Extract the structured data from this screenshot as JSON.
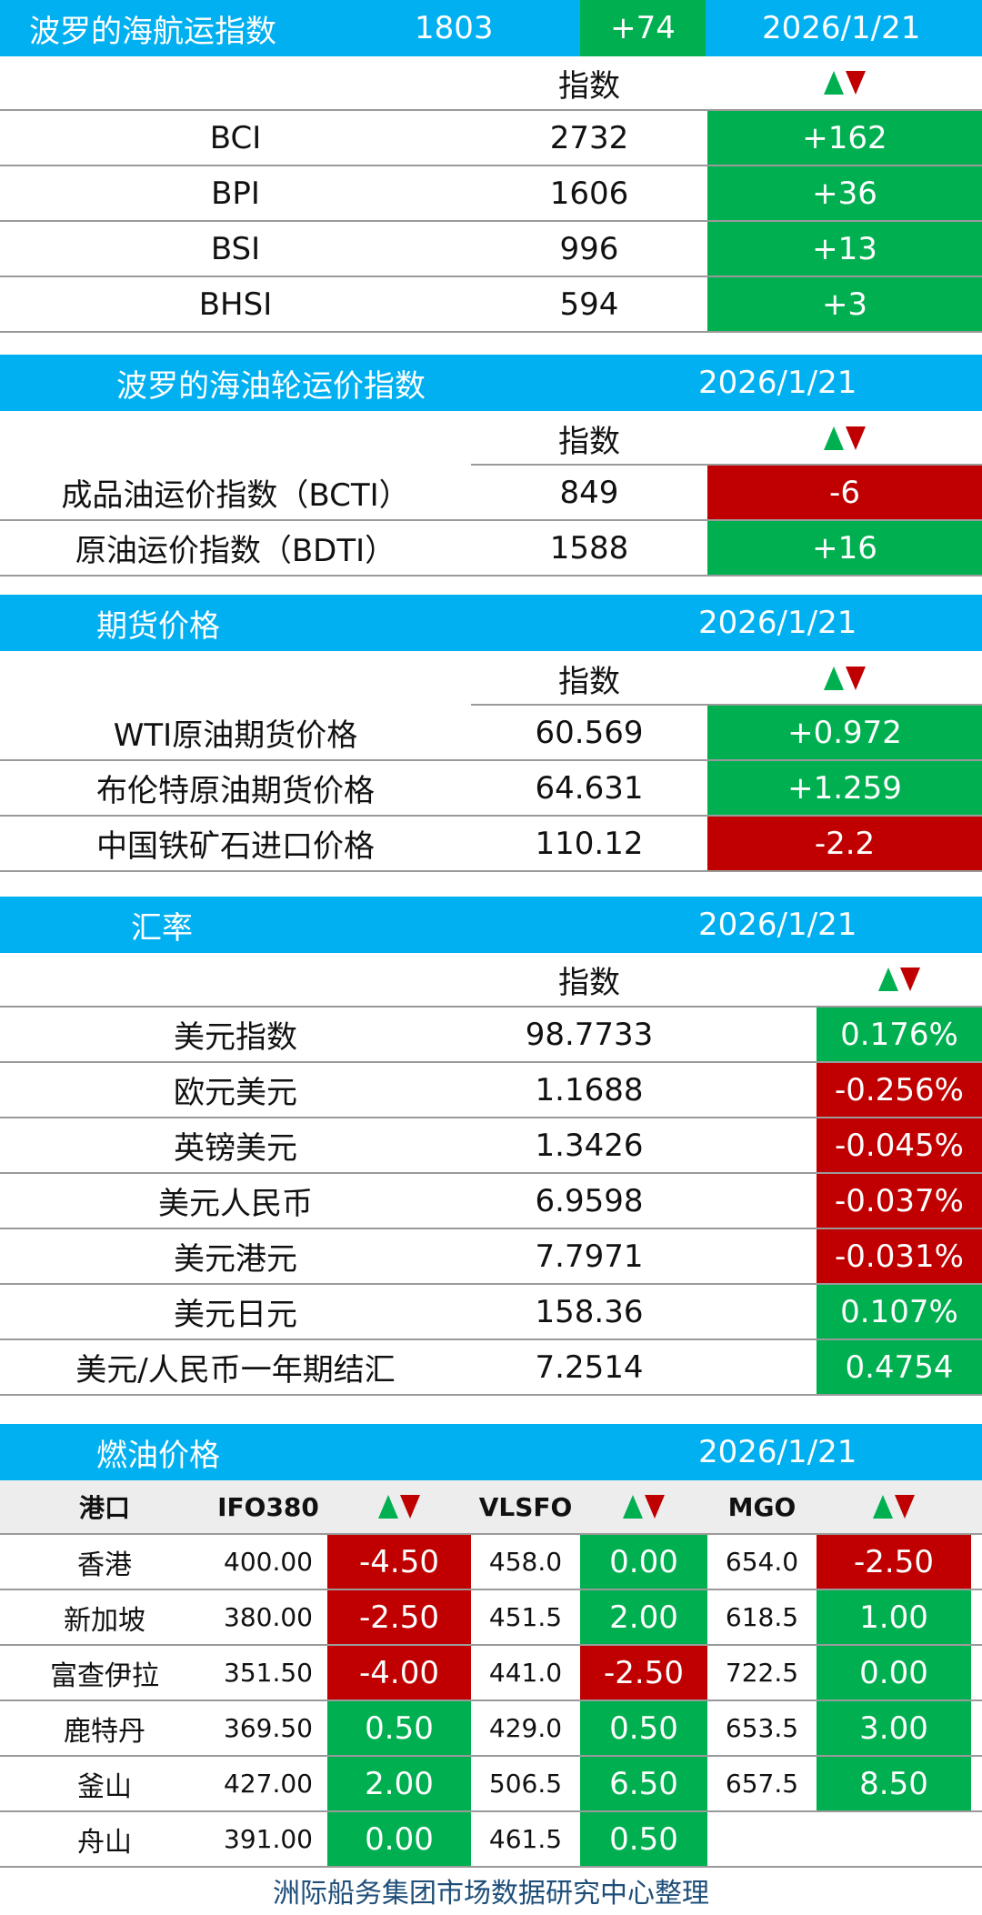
{
  "bdi": {
    "title": "波罗的海航运指数",
    "value": "1803",
    "change": "+74",
    "date": "2026/1/21",
    "col_index": "指数",
    "rows": [
      {
        "name": "BCI",
        "value": "2732",
        "change": "+162"
      },
      {
        "name": "BPI",
        "value": "1606",
        "change": "+36"
      },
      {
        "name": "BSI",
        "value": "996",
        "change": "+13"
      },
      {
        "name": "BHSI",
        "value": "594",
        "change": "+3"
      }
    ]
  },
  "tanker": {
    "title": "波罗的海油轮运价指数",
    "date": "2026/1/21",
    "col_index": "指数",
    "rows": [
      {
        "name": "成品油运价指数（BCTI）",
        "value": "849",
        "change": "-6"
      },
      {
        "name": "原油运价指数（BDTI）",
        "value": "1588",
        "change": "+16"
      }
    ]
  },
  "futures": {
    "title": "期货价格",
    "date": "2026/1/21",
    "col_index": "指数",
    "rows": [
      {
        "name": "WTI原油期货价格",
        "value": "60.569",
        "change": "+0.972"
      },
      {
        "name": "布伦特原油期货价格",
        "value": "64.631",
        "change": "+1.259"
      },
      {
        "name": "中国铁矿石进口价格",
        "value": "110.12",
        "change": "-2.2"
      }
    ]
  },
  "fx": {
    "title": "汇率",
    "date": "2026/1/21",
    "col_index": "指数",
    "rows": [
      {
        "name": "美元指数",
        "value": "98.7733",
        "change": "0.176%"
      },
      {
        "name": "欧元美元",
        "value": "1.1688",
        "change": "-0.256%"
      },
      {
        "name": "英镑美元",
        "value": "1.3426",
        "change": "-0.045%"
      },
      {
        "name": "美元人民币",
        "value": "6.9598",
        "change": "-0.037%"
      },
      {
        "name": "美元港元",
        "value": "7.7971",
        "change": "-0.031%"
      },
      {
        "name": "美元日元",
        "value": "158.36",
        "change": "0.107%"
      },
      {
        "name": "美元/人民币一年期结汇",
        "value": "7.2514",
        "change": "0.4754"
      }
    ]
  },
  "fuel": {
    "title": "燃油价格",
    "date": "2026/1/21",
    "headers": {
      "port": "港口",
      "ifo": "IFO380",
      "vlsfo": "VLSFO",
      "mgo": "MGO"
    },
    "rows": [
      {
        "port": "香港",
        "ifo": "400.00",
        "ifo_chg": "-4.50",
        "vlsfo": "458.0",
        "vlsfo_chg": "0.00",
        "mgo": "654.0",
        "mgo_chg": "-2.50"
      },
      {
        "port": "新加坡",
        "ifo": "380.00",
        "ifo_chg": "-2.50",
        "vlsfo": "451.5",
        "vlsfo_chg": "2.00",
        "mgo": "618.5",
        "mgo_chg": "1.00"
      },
      {
        "port": "富查伊拉",
        "ifo": "351.50",
        "ifo_chg": "-4.00",
        "vlsfo": "441.0",
        "vlsfo_chg": "-2.50",
        "mgo": "722.5",
        "mgo_chg": "0.00"
      },
      {
        "port": "鹿特丹",
        "ifo": "369.50",
        "ifo_chg": "0.50",
        "vlsfo": "429.0",
        "vlsfo_chg": "0.50",
        "mgo": "653.5",
        "mgo_chg": "3.00"
      },
      {
        "port": "釜山",
        "ifo": "427.00",
        "ifo_chg": "2.00",
        "vlsfo": "506.5",
        "vlsfo_chg": "6.50",
        "mgo": "657.5",
        "mgo_chg": "8.50"
      },
      {
        "port": "舟山",
        "ifo": "391.00",
        "ifo_chg": "0.00",
        "vlsfo": "461.5",
        "vlsfo_chg": "0.50",
        "mgo": "",
        "mgo_chg": ""
      }
    ]
  },
  "colors": {
    "band": "#00b0f0",
    "up": "#00b050",
    "down": "#c00000",
    "footer": "#1f4e79"
  },
  "footer": "洲际船务集团市场数据研究中心整理"
}
